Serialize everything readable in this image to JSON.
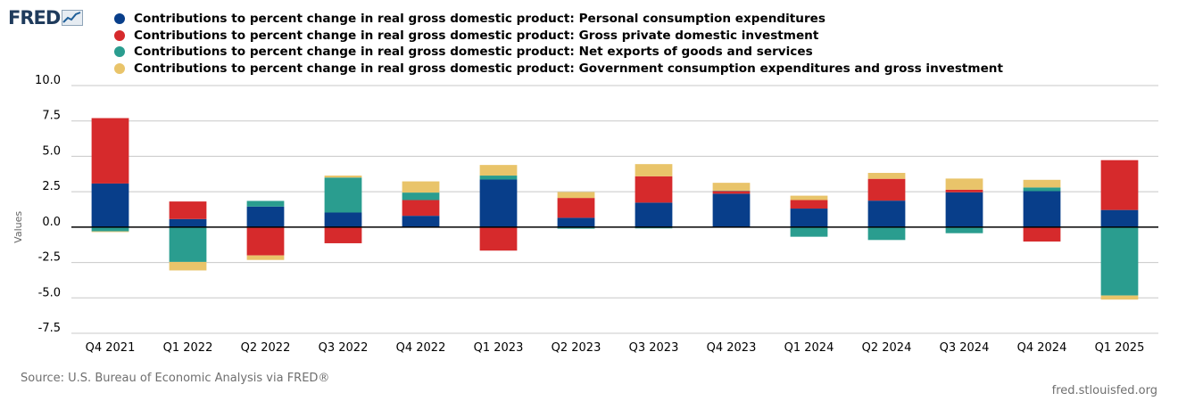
{
  "logo": {
    "text": "FRED"
  },
  "chart_data": {
    "type": "bar",
    "stacked": true,
    "categories": [
      "Q4 2021",
      "Q1 2022",
      "Q2 2022",
      "Q3 2022",
      "Q4 2022",
      "Q1 2023",
      "Q2 2023",
      "Q3 2023",
      "Q4 2023",
      "Q1 2024",
      "Q2 2024",
      "Q3 2024",
      "Q4 2024",
      "Q1 2025"
    ],
    "series": [
      {
        "name": "Contributions to percent change in real gross domestic product: Personal consumption expenditures",
        "color": "#083e8a",
        "values": [
          3.08,
          0.57,
          1.45,
          1.03,
          0.8,
          3.36,
          0.66,
          1.73,
          2.36,
          1.31,
          1.87,
          2.46,
          2.54,
          1.21
        ]
      },
      {
        "name": "Contributions to percent change in real gross domestic product: Gross private domestic investment",
        "color": "#d62a2c",
        "values": [
          4.62,
          1.24,
          -2.0,
          -1.14,
          1.11,
          -1.66,
          1.4,
          1.86,
          0.19,
          0.6,
          1.54,
          0.18,
          -1.02,
          3.52
        ]
      },
      {
        "name": "Contributions to percent change in real gross domestic product: Net exports of goods and services",
        "color": "#2a9d8f",
        "values": [
          -0.3,
          -2.46,
          0.4,
          2.47,
          0.53,
          0.28,
          -0.11,
          -0.09,
          0.03,
          -0.68,
          -0.91,
          -0.43,
          0.26,
          -4.83
        ]
      },
      {
        "name": "Contributions to percent change in real gross domestic product: Government consumption expenditures and gross investment",
        "color": "#e9c46a",
        "values": [
          -0.05,
          -0.6,
          -0.32,
          0.14,
          0.79,
          0.75,
          0.42,
          0.86,
          0.55,
          0.31,
          0.42,
          0.79,
          0.54,
          -0.29
        ]
      }
    ],
    "ylim": [
      -7.5,
      10
    ],
    "yticks": [
      10.0,
      7.5,
      5.0,
      2.5,
      0.0,
      -2.5,
      -5.0,
      -7.5
    ],
    "ytick_labels": [
      "10.0",
      "7.5",
      "5.0",
      "2.5",
      "0.0",
      "-2.5",
      "-5.0",
      "-7.5"
    ],
    "ylabel": "Values",
    "xlabel": "",
    "grid": true,
    "legend_position": "top"
  },
  "footer": {
    "source": "Source: U.S. Bureau of Economic Analysis via FRED®",
    "site": "fred.stlouisfed.org"
  }
}
